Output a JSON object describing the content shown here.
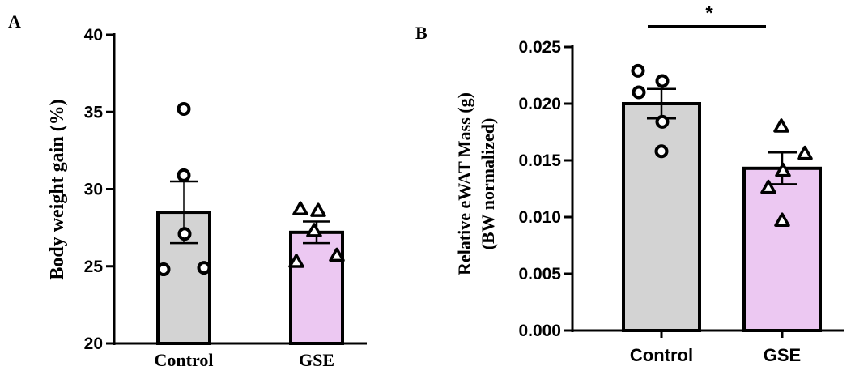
{
  "chart_data": [
    {
      "panel": "A",
      "type": "bar",
      "ylabel": "Body weight gain (%)",
      "ylim": [
        20,
        40
      ],
      "yticks": [
        "20",
        "25",
        "30",
        "35",
        "40"
      ],
      "categories": [
        "Control",
        "GSE"
      ],
      "values": [
        28.5,
        27.2
      ],
      "error": [
        2.0,
        0.7
      ],
      "bar_colors": [
        "#d3d3d3",
        "#ecc8f2"
      ],
      "markers": [
        "circle",
        "triangle"
      ],
      "points": [
        [
          35.2,
          30.9,
          27.1,
          24.8,
          24.9
        ],
        [
          28.7,
          28.6,
          27.3,
          25.3,
          25.7
        ]
      ]
    },
    {
      "panel": "B",
      "type": "bar",
      "ylabel_line1": "Relative eWAT Mass (g)",
      "ylabel_line2": "(BW normalized)",
      "ylim": [
        0,
        0.025
      ],
      "yticks": [
        "0.000",
        "0.005",
        "0.010",
        "0.015",
        "0.020",
        "0.025"
      ],
      "categories": [
        "Control",
        "GSE"
      ],
      "values": [
        0.02,
        0.0143
      ],
      "error": [
        0.0013,
        0.0014
      ],
      "bar_colors": [
        "#d3d3d3",
        "#ecc8f2"
      ],
      "markers": [
        "circle",
        "triangle"
      ],
      "points": [
        [
          0.0229,
          0.022,
          0.021,
          0.0184,
          0.0158
        ],
        [
          0.018,
          0.0156,
          0.0141,
          0.0126,
          0.0097
        ]
      ],
      "significance": "*"
    }
  ]
}
